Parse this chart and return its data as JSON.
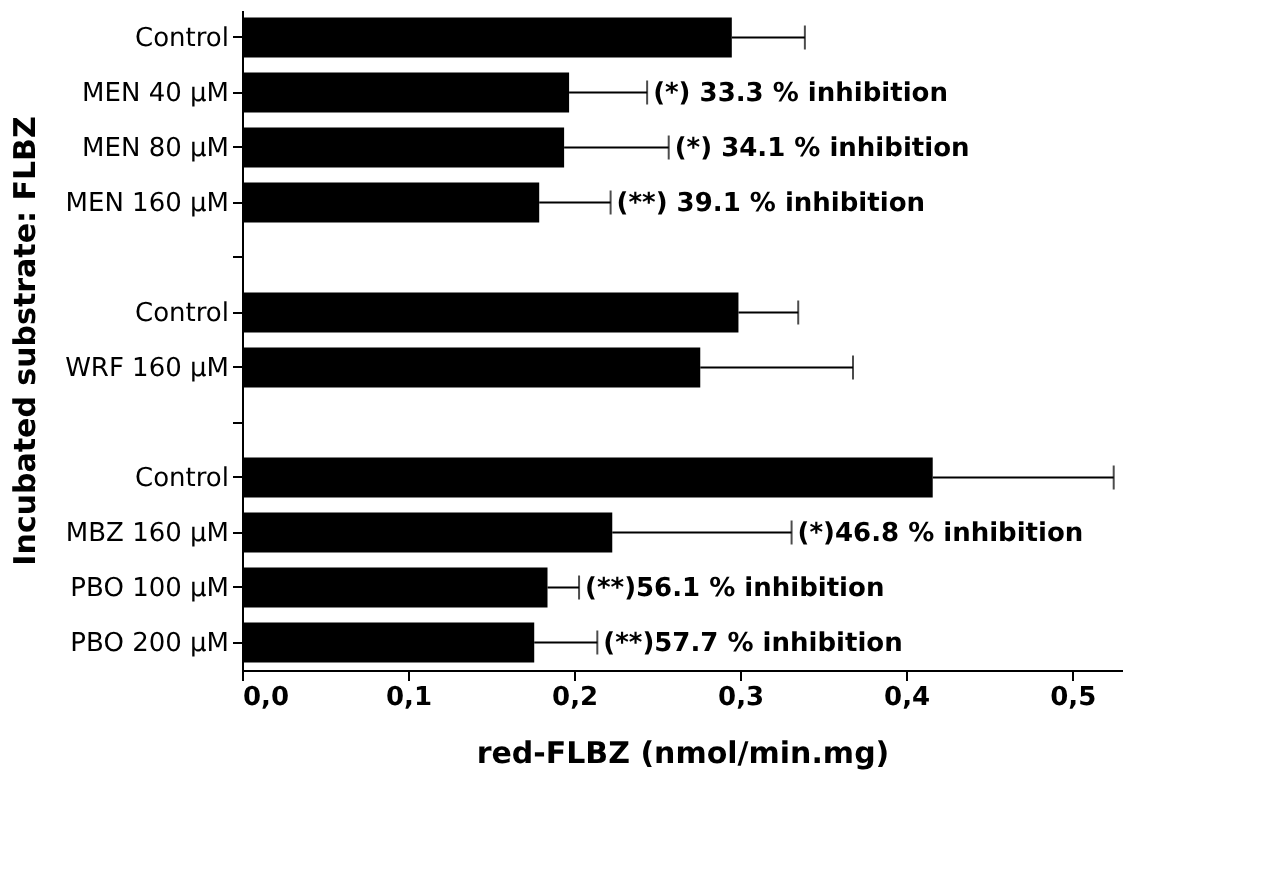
{
  "chart_data": {
    "type": "bar",
    "orientation": "horizontal",
    "xlabel": "red-FLBZ (nmol/min.mg)",
    "ylabel": "Incubated substrate: FLBZ",
    "categories": [
      "Control",
      "MEN 40 µM",
      "MEN 80 µM",
      "MEN 160 µM",
      null,
      "Control",
      "WRF 160 µM",
      null,
      "Control",
      "MBZ 160 µM",
      "PBO 100 µM",
      "PBO 200 µM"
    ],
    "values": [
      0.295,
      0.197,
      0.194,
      0.179,
      null,
      0.299,
      0.276,
      null,
      0.416,
      0.223,
      0.184,
      0.176
    ],
    "errors": [
      [
        0.295,
        0.339
      ],
      [
        0.197,
        0.244
      ],
      [
        0.194,
        0.257
      ],
      [
        0.179,
        0.222
      ],
      null,
      [
        0.299,
        0.335
      ],
      [
        0.276,
        0.368
      ],
      null,
      [
        0.416,
        0.525
      ],
      [
        0.223,
        0.331
      ],
      [
        0.184,
        0.203
      ],
      [
        0.176,
        0.214
      ]
    ],
    "color": "#000000",
    "xlim": [
      0,
      0.53
    ],
    "xticks": [
      {
        "value": 0,
        "label": "0,0"
      },
      {
        "value": 0.1,
        "label": "0,1"
      },
      {
        "value": 0.2,
        "label": "0,2"
      },
      {
        "value": 0.3,
        "label": "0,3"
      },
      {
        "value": 0.4,
        "label": "0,4"
      },
      {
        "value": 0.5,
        "label": "0,5"
      }
    ],
    "grid": false,
    "annotations": [
      {
        "text": "(*) 33.3 % inhibition",
        "x": 0.244,
        "y": "MEN 40 µM"
      },
      {
        "text": "(*) 34.1 % inhibition",
        "x": 0.257,
        "y": "MEN 80 µM"
      },
      {
        "text": "(**) 39.1 % inhibition",
        "x": 0.222,
        "y": "MEN 160 µM"
      },
      {
        "text": "(*)46.8 % inhibition",
        "x": 0.331,
        "y": "MBZ 160 µM"
      },
      {
        "text": "(**)56.1 % inhibition",
        "x": 0.203,
        "y": "PBO 100 µM"
      },
      {
        "text": "(**)57.7 % inhibition",
        "x": 0.214,
        "y": "PBO 200 µM"
      }
    ]
  }
}
